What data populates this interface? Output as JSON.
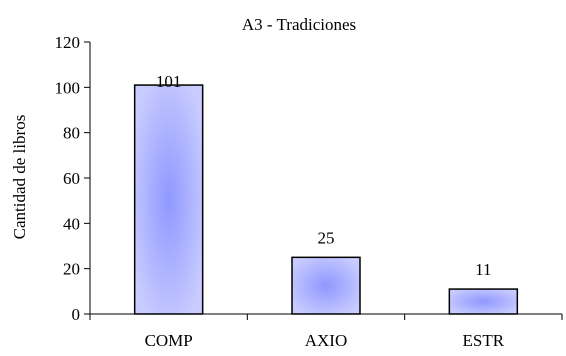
{
  "chart_data": {
    "type": "bar",
    "title": "A3 - Tradiciones",
    "xlabel": "",
    "ylabel": "Cantidad de libros",
    "categories": [
      "COMP",
      "AXIO",
      "ESTR"
    ],
    "values": [
      101,
      25,
      11
    ],
    "data_labels": [
      "101",
      "25",
      "11"
    ],
    "ylim": [
      0,
      120
    ],
    "yticks": [
      0,
      20,
      40,
      60,
      80,
      100,
      120
    ],
    "ytick_labels": [
      "0",
      "20",
      "40",
      "60",
      "80",
      "100",
      "120"
    ],
    "grid": false,
    "legend": "none",
    "colors": {
      "bar_center": "#8f98ff",
      "bar_edge": "#c9ccff",
      "bar_border": "#000000",
      "axis": "#000000",
      "text": "#000000"
    }
  }
}
